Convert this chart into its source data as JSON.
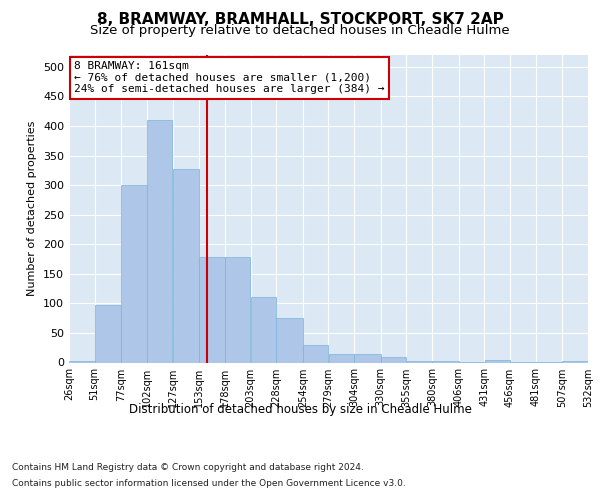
{
  "title": "8, BRAMWAY, BRAMHALL, STOCKPORT, SK7 2AP",
  "subtitle": "Size of property relative to detached houses in Cheadle Hulme",
  "xlabel": "Distribution of detached houses by size in Cheadle Hulme",
  "ylabel": "Number of detached properties",
  "bar_color": "#aec6e8",
  "bar_edge_color": "#7ab4d8",
  "vline_color": "#cc0000",
  "vline_x": 161,
  "annotation_text": "8 BRAMWAY: 161sqm\n← 76% of detached houses are smaller (1,200)\n24% of semi-detached houses are larger (384) →",
  "annotation_box_color": "#ffffff",
  "annotation_box_edge_color": "#cc0000",
  "footer_line1": "Contains HM Land Registry data © Crown copyright and database right 2024.",
  "footer_line2": "Contains public sector information licensed under the Open Government Licence v3.0.",
  "bins": [
    26,
    51,
    77,
    102,
    127,
    153,
    178,
    203,
    228,
    254,
    279,
    304,
    330,
    355,
    380,
    406,
    431,
    456,
    481,
    507,
    532
  ],
  "counts": [
    2,
    98,
    300,
    410,
    328,
    178,
    178,
    110,
    75,
    30,
    15,
    15,
    10,
    3,
    3,
    1,
    5,
    1,
    1,
    3
  ],
  "ylim": [
    0,
    520
  ],
  "yticks": [
    0,
    50,
    100,
    150,
    200,
    250,
    300,
    350,
    400,
    450,
    500
  ],
  "bg_color": "#dce9f5",
  "fig_bg_color": "#ffffff",
  "title_fontsize": 11,
  "subtitle_fontsize": 9.5
}
